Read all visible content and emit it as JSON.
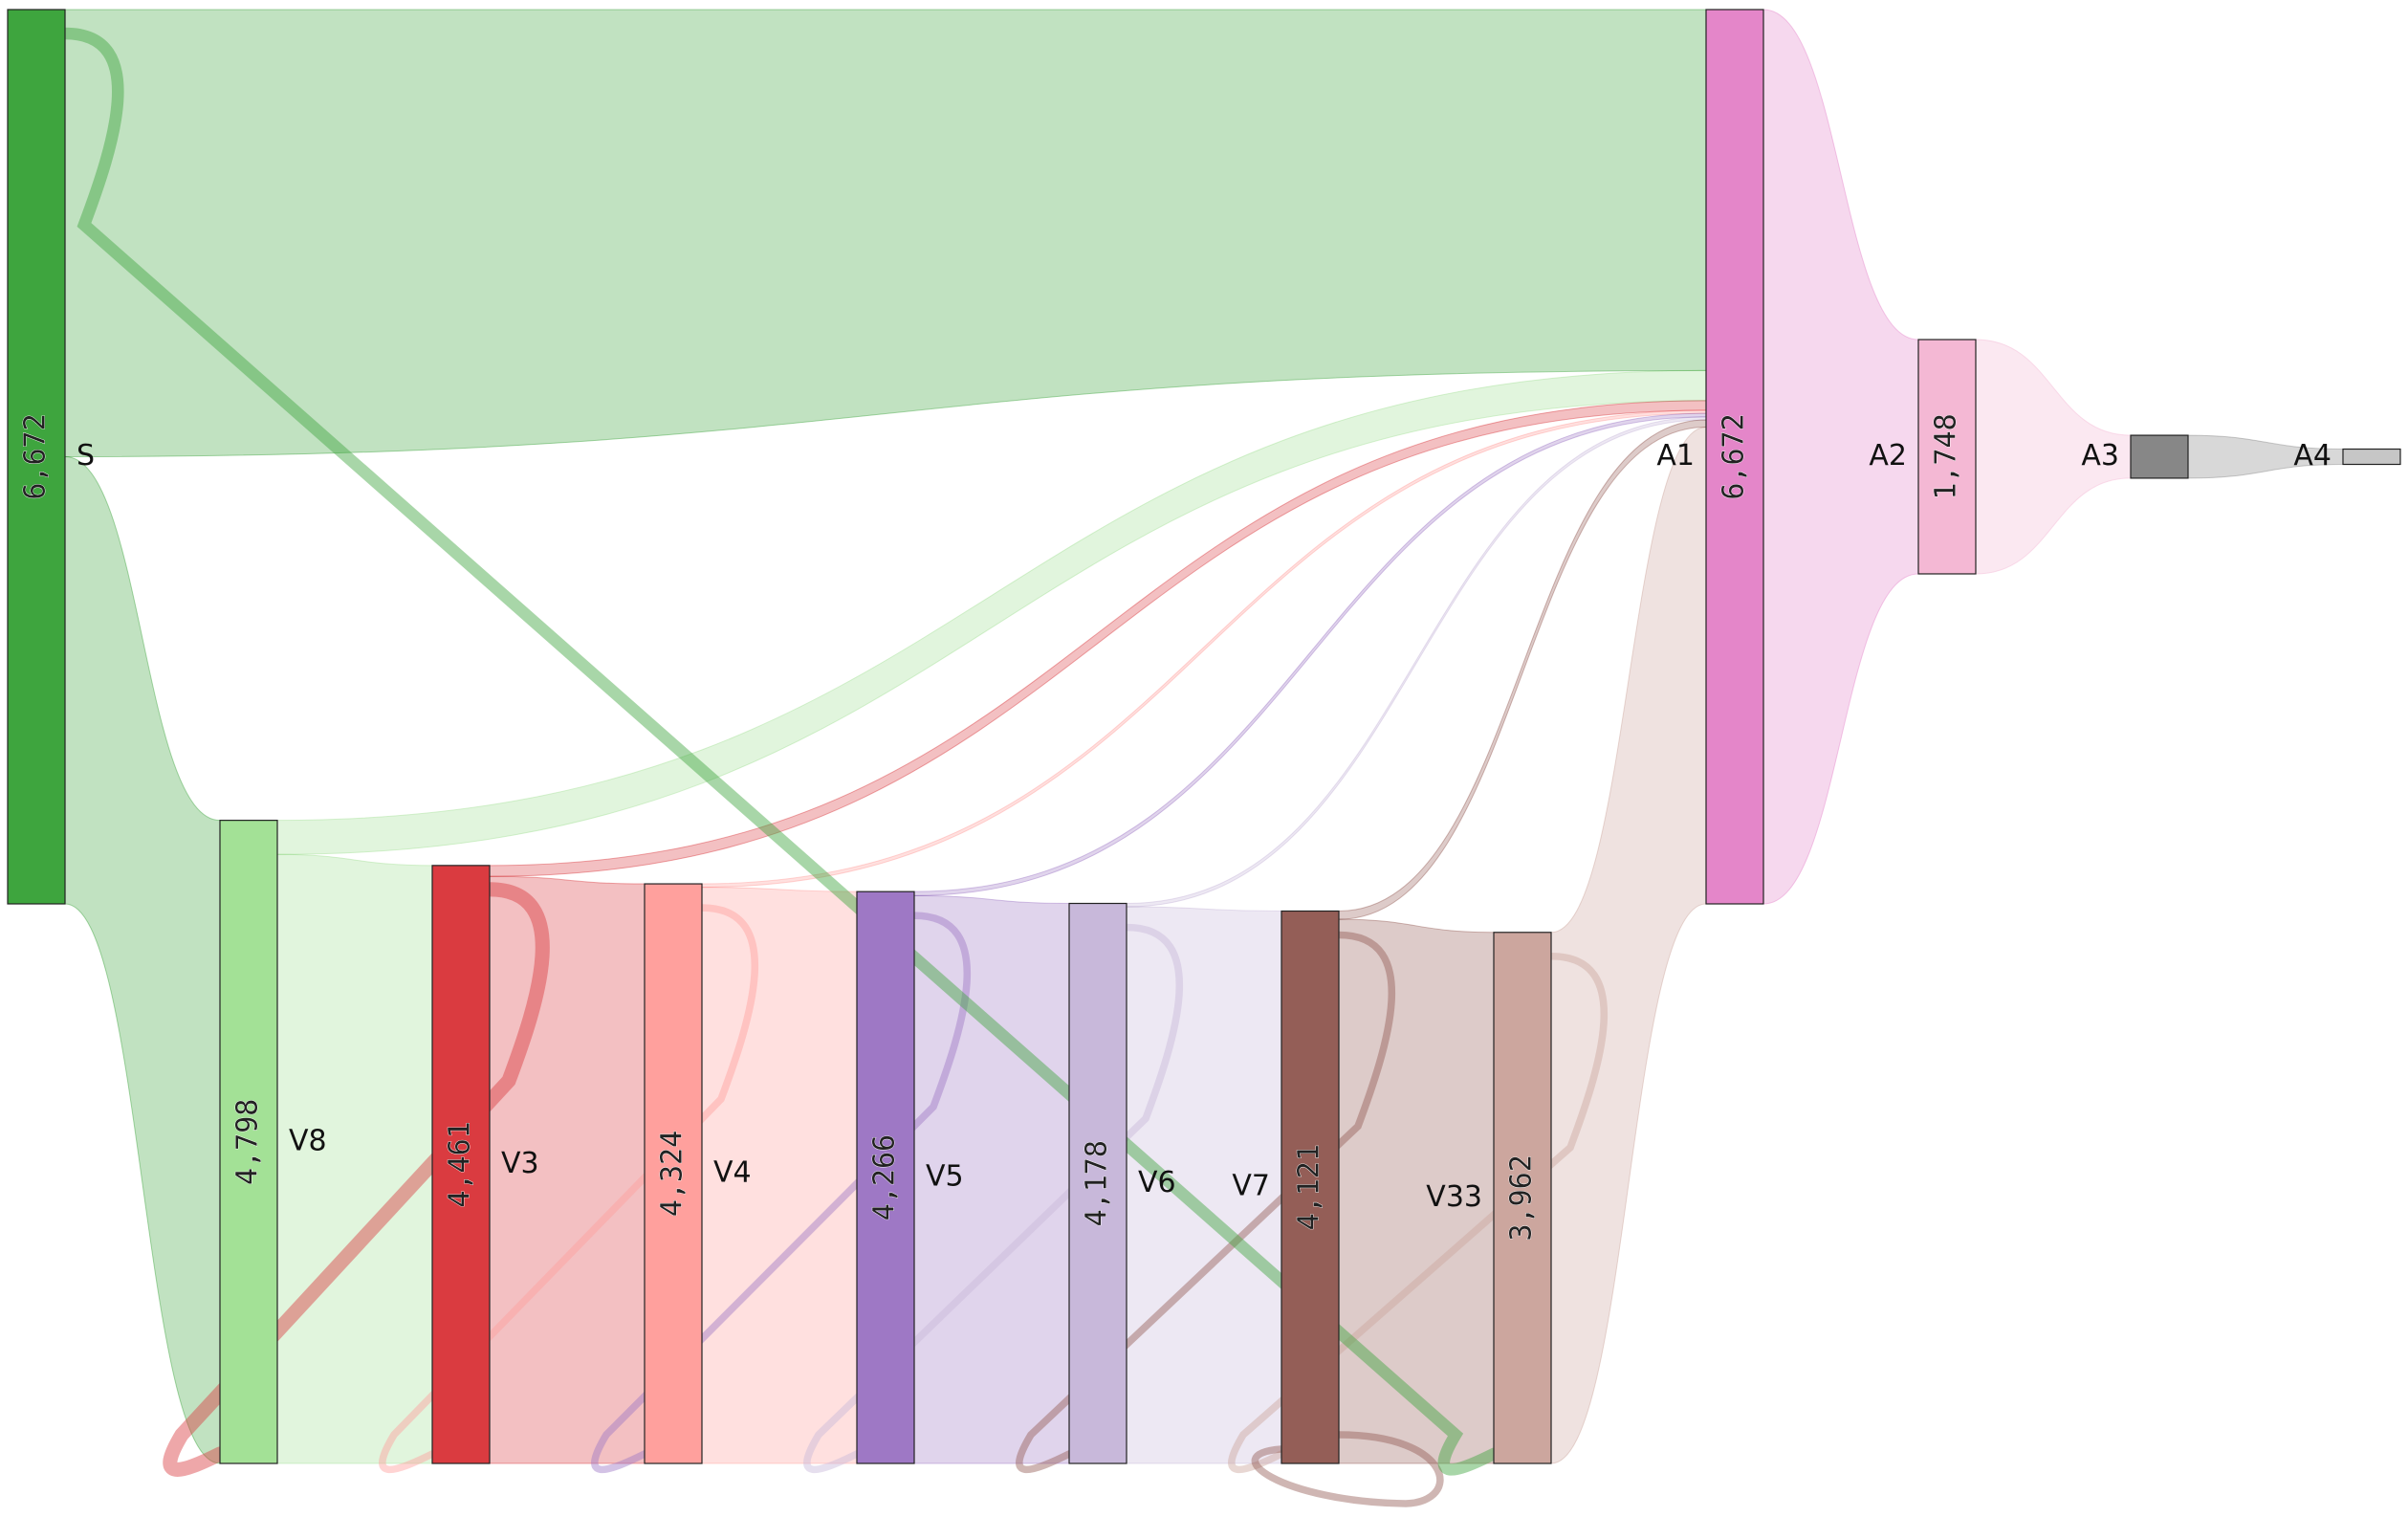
{
  "chart_data": {
    "type": "sankey",
    "nodes": [
      {
        "id": "S",
        "name": "S",
        "value": 6672,
        "color": "#3ea53e"
      },
      {
        "id": "V8",
        "name": "V8",
        "value": 4798,
        "color": "#a3e196"
      },
      {
        "id": "V3",
        "name": "V3",
        "value": 4461,
        "color": "#da3b40"
      },
      {
        "id": "V4",
        "name": "V4",
        "value": 4324,
        "color": "#ffa09d"
      },
      {
        "id": "V5",
        "name": "V5",
        "value": 4266,
        "color": "#9e78c5"
      },
      {
        "id": "V6",
        "name": "V6",
        "value": 4178,
        "color": "#c8b8da"
      },
      {
        "id": "V7",
        "name": "V7",
        "value": 4121,
        "color": "#945e57"
      },
      {
        "id": "V33",
        "name": "V33",
        "value": 3962,
        "color": "#cca69e"
      },
      {
        "id": "A1",
        "name": "A1",
        "value": 6672,
        "color": "#e486c9"
      },
      {
        "id": "A2",
        "name": "A2",
        "value": 1748,
        "color": "#f4b8d4"
      },
      {
        "id": "A3",
        "name": "A3",
        "value": 320,
        "color": "#878787"
      },
      {
        "id": "A4",
        "name": "A4",
        "value": 45,
        "color": "#c6c6c6"
      }
    ],
    "links": [
      {
        "source": "S",
        "target": "A1",
        "value": 3000
      },
      {
        "source": "S",
        "target": "V8",
        "value": 3000
      },
      {
        "source": "V8",
        "target": "A1",
        "value": 250
      },
      {
        "source": "V8",
        "target": "V3",
        "value": 4461
      },
      {
        "source": "V3",
        "target": "A1",
        "value": 80
      },
      {
        "source": "V3",
        "target": "V4",
        "value": 4324
      },
      {
        "source": "V4",
        "target": "A1",
        "value": 25
      },
      {
        "source": "V4",
        "target": "V5",
        "value": 4266
      },
      {
        "source": "V5",
        "target": "A1",
        "value": 30
      },
      {
        "source": "V5",
        "target": "V6",
        "value": 4178
      },
      {
        "source": "V6",
        "target": "A1",
        "value": 25
      },
      {
        "source": "V6",
        "target": "V7",
        "value": 4121
      },
      {
        "source": "V7",
        "target": "A1",
        "value": 60
      },
      {
        "source": "V7",
        "target": "V33",
        "value": 3962
      },
      {
        "source": "V33",
        "target": "A1",
        "value": 3962
      },
      {
        "source": "A1",
        "target": "A2",
        "value": 1748
      },
      {
        "source": "A2",
        "target": "A3",
        "value": 320
      },
      {
        "source": "A3",
        "target": "A4",
        "value": 45
      }
    ],
    "back_links": [
      {
        "source": "V3",
        "target": "V8",
        "value": 120
      },
      {
        "source": "V4",
        "target": "V3",
        "value": 60
      },
      {
        "source": "V5",
        "target": "V4",
        "value": 60
      },
      {
        "source": "V6",
        "target": "V5",
        "value": 60
      },
      {
        "source": "V7",
        "target": "V6",
        "value": 60
      },
      {
        "source": "V33",
        "target": "V7",
        "value": 60
      },
      {
        "source": "V7",
        "target": "V7",
        "value": 60
      },
      {
        "source": "S",
        "target": "V33",
        "value": 100
      }
    ],
    "value_format": "thousands-comma"
  }
}
